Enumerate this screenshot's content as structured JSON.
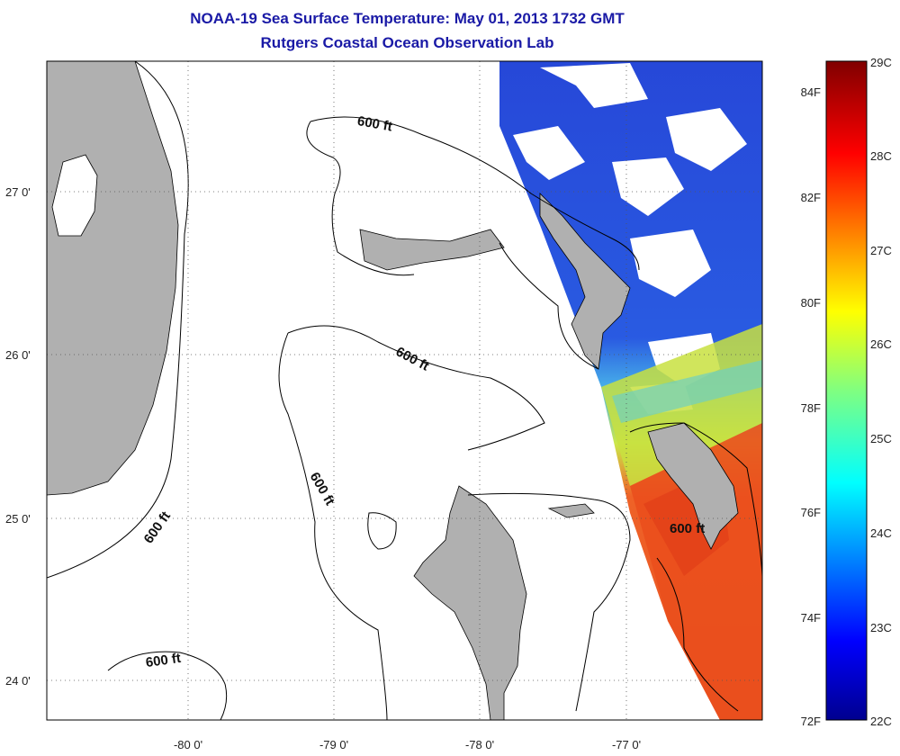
{
  "title": {
    "line1": "NOAA-19 Sea Surface Temperature:  May 01, 2013 1732 GMT",
    "line2": "Rutgers Coastal Ocean Observation Lab"
  },
  "map": {
    "lat_ticks": [
      "27 0'",
      "26 0'",
      "25 0'",
      "24 0'"
    ],
    "lon_ticks": [
      "-80 0'",
      "-79 0'",
      "-78 0'",
      "-77 0'"
    ],
    "contour_labels": [
      "600 ft",
      "600 ft",
      "600 ft",
      "600 ft",
      "600 ft",
      "600 ft"
    ],
    "colors": {
      "land": "#b0b0b0",
      "warm": "#e8501a",
      "cool": "#1a3fd0"
    }
  },
  "colorbar": {
    "celsius": [
      "29C",
      "28C",
      "27C",
      "26C",
      "25C",
      "24C",
      "23C",
      "22C"
    ],
    "fahrenheit": [
      "84F",
      "82F",
      "80F",
      "78F",
      "76F",
      "74F",
      "72F"
    ],
    "range_c": [
      22,
      29
    ]
  }
}
